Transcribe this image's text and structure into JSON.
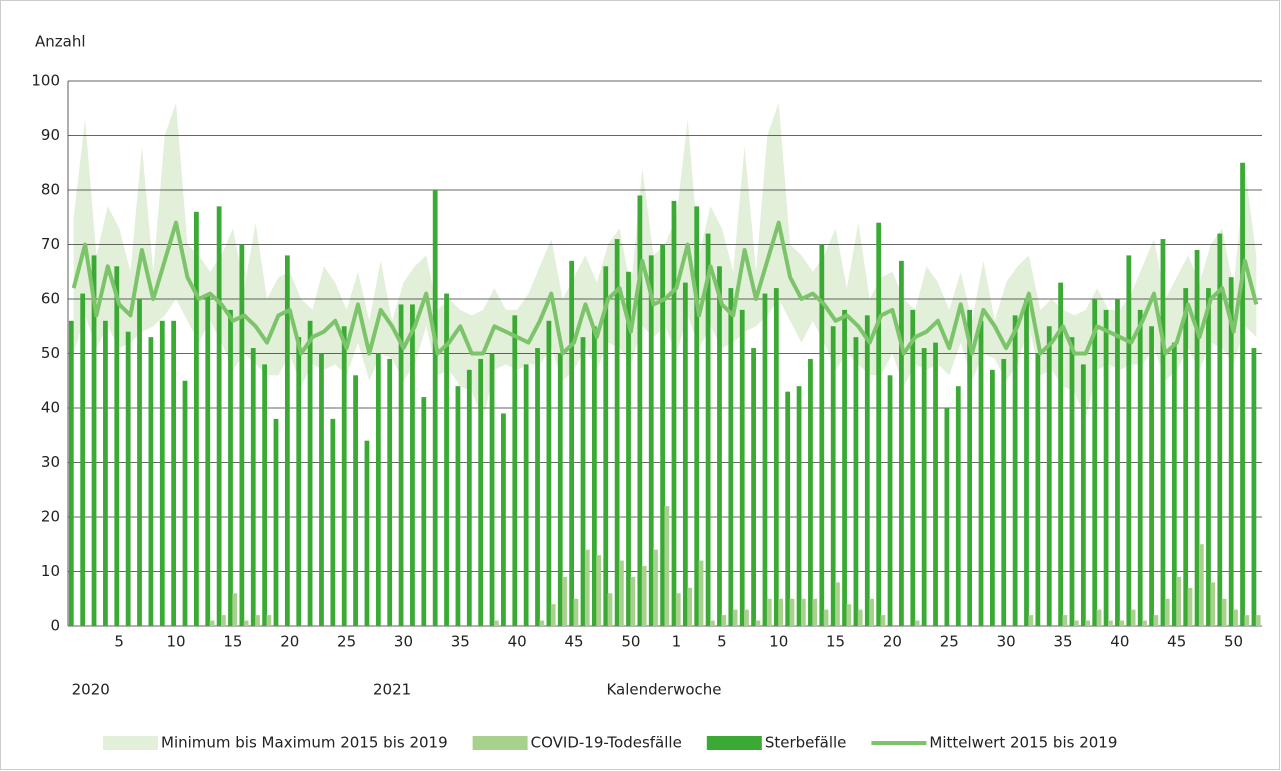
{
  "chart_data": {
    "type": "bar",
    "y_label": "Anzahl",
    "x_label": "Kalenderwoche",
    "year_labels": [
      "2020",
      "2021"
    ],
    "categories": [
      null,
      null,
      null,
      null,
      "5",
      null,
      null,
      null,
      null,
      "10",
      null,
      null,
      null,
      null,
      "15",
      null,
      null,
      null,
      null,
      "20",
      null,
      null,
      null,
      null,
      "25",
      null,
      null,
      null,
      null,
      "30",
      null,
      null,
      null,
      null,
      "35",
      null,
      null,
      null,
      null,
      "40",
      null,
      null,
      null,
      null,
      "45",
      null,
      null,
      null,
      null,
      "50",
      null,
      null,
      null,
      "1",
      null,
      null,
      null,
      "5",
      null,
      null,
      null,
      null,
      "10",
      null,
      null,
      null,
      null,
      "15",
      null,
      null,
      null,
      null,
      "20",
      null,
      null,
      null,
      null,
      "25",
      null,
      null,
      null,
      null,
      "30",
      null,
      null,
      null,
      null,
      "35",
      null,
      null,
      null,
      null,
      "40",
      null,
      null,
      null,
      null,
      "45",
      null,
      null,
      null,
      null,
      "50",
      null,
      null
    ],
    "ylim": [
      0,
      100
    ],
    "yticks": [
      0,
      10,
      20,
      30,
      40,
      50,
      60,
      70,
      80,
      90,
      100
    ],
    "grid": true,
    "series": [
      {
        "name": "Minimum bis Maximum 2015 bis 2019",
        "type": "band",
        "color": "#e2efd9",
        "min": [
          50,
          57,
          51,
          55,
          51,
          52,
          54,
          55,
          57,
          60,
          56,
          52,
          56,
          52,
          47,
          50,
          48,
          46,
          46,
          50,
          44,
          48,
          47,
          48,
          46,
          52,
          45,
          50,
          49,
          45,
          48,
          55,
          46,
          47,
          44,
          43,
          38,
          47,
          48,
          47,
          48,
          48,
          51,
          45,
          47,
          51,
          47,
          52,
          51,
          48,
          55,
          53,
          55,
          50,
          57,
          51,
          55,
          51,
          52,
          54,
          55,
          57,
          60,
          56,
          52,
          56,
          52,
          47,
          50,
          48,
          46,
          46,
          50,
          44,
          48,
          47,
          48,
          46,
          52,
          45,
          50,
          49,
          45,
          48,
          55,
          46,
          47,
          44,
          43,
          38,
          47,
          48,
          47,
          48,
          48,
          51,
          45,
          47,
          51,
          47,
          52,
          51,
          48,
          55,
          53
        ],
        "max": [
          75,
          93,
          68,
          77,
          73,
          65,
          88,
          65,
          90,
          96,
          70,
          68,
          65,
          68,
          73,
          62,
          74,
          60,
          64,
          65,
          60,
          58,
          66,
          63,
          58,
          65,
          56,
          67,
          56,
          63,
          66,
          68,
          58,
          60,
          58,
          57,
          58,
          62,
          58,
          58,
          61,
          66,
          71,
          60,
          64,
          68,
          63,
          70,
          73,
          62,
          84,
          68,
          70,
          75,
          93,
          68,
          77,
          73,
          65,
          88,
          65,
          90,
          96,
          70,
          68,
          65,
          68,
          73,
          62,
          74,
          60,
          64,
          65,
          60,
          58,
          66,
          63,
          58,
          65,
          56,
          67,
          56,
          63,
          66,
          68,
          58,
          60,
          58,
          57,
          58,
          62,
          58,
          58,
          61,
          66,
          71,
          60,
          64,
          68,
          63,
          70,
          73,
          62,
          84,
          68
        ]
      },
      {
        "name": "COVID-19-Todesfälle",
        "type": "bar",
        "color": "#a9d18e",
        "values": [
          0,
          0,
          0,
          0,
          0,
          0,
          0,
          0,
          0,
          0,
          0,
          0,
          1,
          2,
          6,
          1,
          2,
          2,
          0,
          0,
          0,
          0,
          0,
          0,
          0,
          0,
          0,
          0,
          0,
          0,
          0,
          0,
          0,
          0,
          0,
          0,
          0,
          1,
          0,
          0,
          0,
          1,
          4,
          9,
          5,
          14,
          13,
          6,
          12,
          9,
          11,
          14,
          22,
          6,
          7,
          12,
          1,
          2,
          3,
          3,
          1,
          5,
          5,
          5,
          5,
          5,
          3,
          8,
          4,
          3,
          5,
          2,
          0,
          0,
          1,
          0,
          0,
          0,
          0,
          0,
          0,
          0,
          0,
          0,
          2,
          0,
          0,
          2,
          1,
          1,
          3,
          1,
          1,
          3,
          1,
          2,
          5,
          9,
          7,
          15,
          8,
          5,
          3,
          2,
          2
        ]
      },
      {
        "name": "Sterbefälle",
        "type": "bar",
        "color": "#3aaa35",
        "values": [
          56,
          61,
          68,
          56,
          66,
          54,
          60,
          53,
          56,
          56,
          45,
          76,
          61,
          77,
          58,
          70,
          51,
          48,
          38,
          68,
          53,
          56,
          50,
          38,
          55,
          46,
          34,
          50,
          49,
          59,
          59,
          42,
          80,
          61,
          44,
          47,
          49,
          50,
          39,
          57,
          48,
          51,
          56,
          50,
          67,
          53,
          55,
          66,
          71,
          65,
          79,
          68,
          70,
          78,
          63,
          77,
          72,
          66,
          62,
          58,
          51,
          61,
          62,
          43,
          44,
          49,
          70,
          55,
          58,
          53,
          57,
          74,
          46,
          67,
          58,
          51,
          52,
          40,
          44,
          58,
          56,
          47,
          49,
          57,
          60,
          50,
          55,
          63,
          53,
          48,
          60,
          58,
          60,
          68,
          58,
          55,
          71,
          52,
          62,
          69,
          62,
          72,
          64,
          85,
          51
        ]
      },
      {
        "name": "Mittelwert 2015 bis 2019",
        "type": "line",
        "color": "#7cc46a",
        "values": [
          62,
          70,
          57,
          66,
          59,
          57,
          69,
          60,
          67,
          74,
          64,
          60,
          61,
          59,
          56,
          57,
          55,
          52,
          57,
          58,
          50,
          53,
          54,
          56,
          51,
          59,
          50,
          58,
          55,
          51,
          55,
          61,
          50,
          52,
          55,
          50,
          50,
          55,
          54,
          53,
          52,
          56,
          61,
          50,
          52,
          59,
          53,
          60,
          62,
          54,
          67,
          59,
          60,
          62,
          70,
          57,
          66,
          59,
          57,
          69,
          60,
          67,
          74,
          64,
          60,
          61,
          59,
          56,
          57,
          55,
          52,
          57,
          58,
          50,
          53,
          54,
          56,
          51,
          59,
          50,
          58,
          55,
          51,
          55,
          61,
          50,
          52,
          55,
          50,
          50,
          55,
          54,
          53,
          52,
          56,
          61,
          50,
          52,
          59,
          53,
          60,
          62,
          54,
          67,
          59
        ]
      }
    ]
  }
}
